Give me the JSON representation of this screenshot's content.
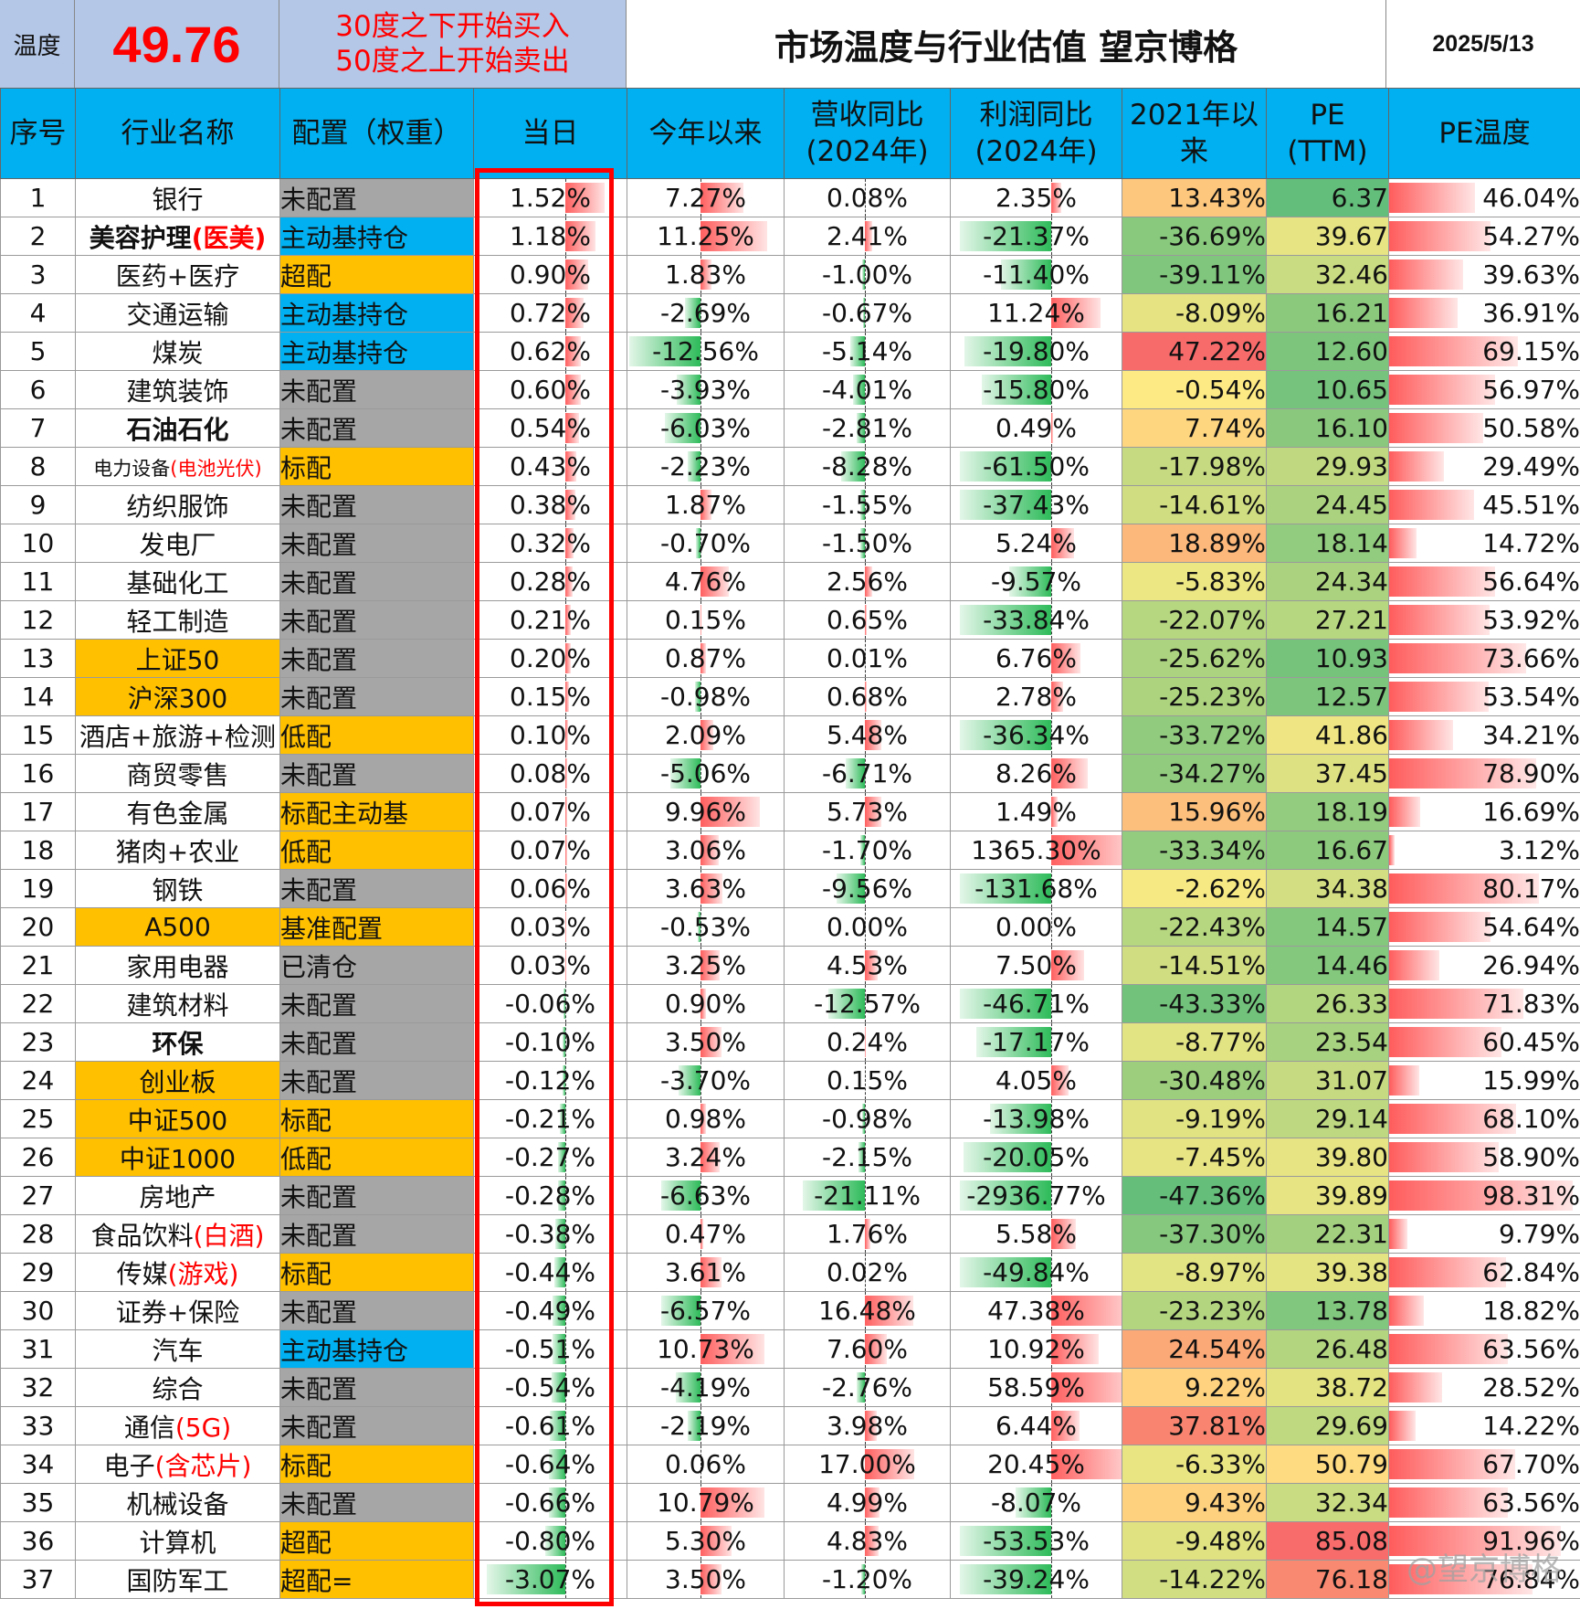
{
  "header": {
    "temp_label": "温度",
    "temp_value": "49.76",
    "rule_line1": "30度之下开始买入",
    "rule_line2": "50度之上开始卖出",
    "title": "市场温度与行业估值 望京博格",
    "date": "2025/5/13"
  },
  "columns": [
    {
      "label": "序号"
    },
    {
      "label": "行业名称"
    },
    {
      "label": "配置（权重）"
    },
    {
      "label": "当日"
    },
    {
      "label": "今年以来"
    },
    {
      "label": "营收同比",
      "sub": "(2024年)"
    },
    {
      "label": "利润同比",
      "sub": "(2024年)"
    },
    {
      "label": "2021年以",
      "sub": "来"
    },
    {
      "label": "PE",
      "sub": "(TTM)"
    },
    {
      "label": "PE温度"
    }
  ],
  "colors": {
    "header_bg": "#00b0f0",
    "banner_bg": "#b4c7e7",
    "alloc_gray": "#a6a6a6",
    "alloc_blue": "#00b0f0",
    "gold": "#ffc000",
    "heat_low": "#63be7b",
    "heat_mid": "#ffeb84",
    "heat_high": "#f8696b"
  },
  "rows": [
    {
      "idx": "1",
      "name": "银行",
      "alloc": "未配置",
      "alloc_type": "gray",
      "daily": "1.52%",
      "ytd": "7.27%",
      "rev": "0.08%",
      "profit": "2.35%",
      "since2021": "13.43%",
      "pe": "6.37",
      "pe_temp": "46.04%"
    },
    {
      "idx": "2",
      "name": "美容护理",
      "name_note": "(医美)",
      "name_bold": true,
      "alloc": "主动基持仓",
      "alloc_type": "blue",
      "daily": "1.18%",
      "ytd": "11.25%",
      "rev": "2.41%",
      "profit": "-21.37%",
      "since2021": "-36.69%",
      "pe": "39.67",
      "pe_temp": "54.27%"
    },
    {
      "idx": "3",
      "name": "医药+医疗",
      "alloc": "超配",
      "alloc_type": "gold",
      "daily": "0.90%",
      "ytd": "1.83%",
      "rev": "-1.00%",
      "profit": "-11.40%",
      "since2021": "-39.11%",
      "pe": "32.46",
      "pe_temp": "39.63%"
    },
    {
      "idx": "4",
      "name": "交通运输",
      "alloc": "主动基持仓",
      "alloc_type": "blue",
      "daily": "0.72%",
      "ytd": "-2.69%",
      "rev": "-0.67%",
      "profit": "11.24%",
      "since2021": "-8.09%",
      "pe": "16.21",
      "pe_temp": "36.91%"
    },
    {
      "idx": "5",
      "name": "煤炭",
      "alloc": "主动基持仓",
      "alloc_type": "blue",
      "daily": "0.62%",
      "ytd": "-12.56%",
      "rev": "-5.14%",
      "profit": "-19.80%",
      "since2021": "47.22%",
      "pe": "12.60",
      "pe_temp": "69.15%"
    },
    {
      "idx": "6",
      "name": "建筑装饰",
      "alloc": "未配置",
      "alloc_type": "gray",
      "daily": "0.60%",
      "ytd": "-3.93%",
      "rev": "-4.01%",
      "profit": "-15.80%",
      "since2021": "-0.54%",
      "pe": "10.65",
      "pe_temp": "56.97%"
    },
    {
      "idx": "7",
      "name": "石油石化",
      "name_bold": true,
      "alloc": "未配置",
      "alloc_type": "gray",
      "daily": "0.54%",
      "ytd": "-6.03%",
      "rev": "-2.81%",
      "profit": "0.49%",
      "since2021": "7.74%",
      "pe": "16.10",
      "pe_temp": "50.58%"
    },
    {
      "idx": "8",
      "name": "电力设备",
      "name_note": "(电池光伏)",
      "name_small": true,
      "alloc": "标配",
      "alloc_type": "gold",
      "daily": "0.43%",
      "ytd": "-2.23%",
      "rev": "-8.28%",
      "profit": "-61.50%",
      "since2021": "-17.98%",
      "pe": "29.93",
      "pe_temp": "29.49%"
    },
    {
      "idx": "9",
      "name": "纺织服饰",
      "alloc": "未配置",
      "alloc_type": "gray",
      "daily": "0.38%",
      "ytd": "1.87%",
      "rev": "-1.55%",
      "profit": "-37.43%",
      "since2021": "-14.61%",
      "pe": "24.45",
      "pe_temp": "45.51%"
    },
    {
      "idx": "10",
      "name": "发电厂",
      "alloc": "未配置",
      "alloc_type": "gray",
      "daily": "0.32%",
      "ytd": "-0.70%",
      "rev": "-1.50%",
      "profit": "5.24%",
      "since2021": "18.89%",
      "pe": "18.14",
      "pe_temp": "14.72%"
    },
    {
      "idx": "11",
      "name": "基础化工",
      "alloc": "未配置",
      "alloc_type": "gray",
      "daily": "0.28%",
      "ytd": "4.76%",
      "rev": "2.56%",
      "profit": "-9.57%",
      "since2021": "-5.83%",
      "pe": "24.34",
      "pe_temp": "56.64%"
    },
    {
      "idx": "12",
      "name": "轻工制造",
      "alloc": "未配置",
      "alloc_type": "gray",
      "daily": "0.21%",
      "ytd": "0.15%",
      "rev": "0.65%",
      "profit": "-33.84%",
      "since2021": "-22.07%",
      "pe": "27.21",
      "pe_temp": "53.92%"
    },
    {
      "idx": "13",
      "name": "上证50",
      "name_gold": true,
      "alloc": "未配置",
      "alloc_type": "gray",
      "daily": "0.20%",
      "ytd": "0.87%",
      "rev": "0.01%",
      "profit": "6.76%",
      "since2021": "-25.62%",
      "pe": "10.93",
      "pe_temp": "73.66%"
    },
    {
      "idx": "14",
      "name": "沪深300",
      "name_gold": true,
      "alloc": "未配置",
      "alloc_type": "gray",
      "daily": "0.15%",
      "ytd": "-0.98%",
      "rev": "0.68%",
      "profit": "2.78%",
      "since2021": "-25.23%",
      "pe": "12.57",
      "pe_temp": "53.54%"
    },
    {
      "idx": "15",
      "name": "酒店+旅游+检测",
      "alloc": "低配",
      "alloc_type": "gold",
      "daily": "0.10%",
      "ytd": "2.09%",
      "rev": "5.48%",
      "profit": "-36.34%",
      "since2021": "-33.72%",
      "pe": "41.86",
      "pe_temp": "34.21%"
    },
    {
      "idx": "16",
      "name": "商贸零售",
      "alloc": "未配置",
      "alloc_type": "gray",
      "daily": "0.08%",
      "ytd": "-5.06%",
      "rev": "-6.71%",
      "profit": "8.26%",
      "since2021": "-34.27%",
      "pe": "37.45",
      "pe_temp": "78.90%"
    },
    {
      "idx": "17",
      "name": "有色金属",
      "alloc": "标配主动基",
      "alloc_type": "gold",
      "daily": "0.07%",
      "ytd": "9.96%",
      "rev": "5.73%",
      "profit": "1.49%",
      "since2021": "15.96%",
      "pe": "18.19",
      "pe_temp": "16.69%"
    },
    {
      "idx": "18",
      "name": "猪肉+农业",
      "alloc": "低配",
      "alloc_type": "gold",
      "daily": "0.07%",
      "ytd": "3.06%",
      "rev": "-1.70%",
      "profit": "1365.30%",
      "since2021": "-33.34%",
      "pe": "16.67",
      "pe_temp": "3.12%"
    },
    {
      "idx": "19",
      "name": "钢铁",
      "alloc": "未配置",
      "alloc_type": "gray",
      "daily": "0.06%",
      "ytd": "3.63%",
      "rev": "-9.56%",
      "profit": "-131.68%",
      "since2021": "-2.62%",
      "pe": "34.38",
      "pe_temp": "80.17%"
    },
    {
      "idx": "20",
      "name": "A500",
      "name_gold": true,
      "alloc": "基准配置",
      "alloc_type": "gold",
      "daily": "0.03%",
      "ytd": "-0.53%",
      "rev": "0.00%",
      "profit": "0.00%",
      "since2021": "-22.43%",
      "pe": "14.57",
      "pe_temp": "54.64%"
    },
    {
      "idx": "21",
      "name": "家用电器",
      "alloc": "已清仓",
      "alloc_type": "gray",
      "daily": "0.03%",
      "ytd": "3.25%",
      "rev": "4.53%",
      "profit": "7.50%",
      "since2021": "-14.51%",
      "pe": "14.46",
      "pe_temp": "26.94%"
    },
    {
      "idx": "22",
      "name": "建筑材料",
      "alloc": "未配置",
      "alloc_type": "gray",
      "daily": "-0.06%",
      "ytd": "0.90%",
      "rev": "-12.57%",
      "profit": "-46.71%",
      "since2021": "-43.33%",
      "pe": "26.33",
      "pe_temp": "71.83%"
    },
    {
      "idx": "23",
      "name": "环保",
      "name_bold": true,
      "alloc": "未配置",
      "alloc_type": "gray",
      "daily": "-0.10%",
      "ytd": "3.50%",
      "rev": "0.24%",
      "profit": "-17.17%",
      "since2021": "-8.77%",
      "pe": "23.54",
      "pe_temp": "60.45%"
    },
    {
      "idx": "24",
      "name": "创业板",
      "name_gold": true,
      "alloc": "未配置",
      "alloc_type": "gray",
      "daily": "-0.12%",
      "ytd": "-3.70%",
      "rev": "0.15%",
      "profit": "4.05%",
      "since2021": "-30.48%",
      "pe": "31.07",
      "pe_temp": "15.99%"
    },
    {
      "idx": "25",
      "name": "中证500",
      "name_gold": true,
      "alloc": "标配",
      "alloc_type": "gold",
      "daily": "-0.21%",
      "ytd": "0.98%",
      "rev": "-0.98%",
      "profit": "-13.98%",
      "since2021": "-9.19%",
      "pe": "29.14",
      "pe_temp": "68.10%"
    },
    {
      "idx": "26",
      "name": "中证1000",
      "name_gold": true,
      "alloc": "低配",
      "alloc_type": "gold",
      "daily": "-0.27%",
      "ytd": "3.24%",
      "rev": "-2.15%",
      "profit": "-20.05%",
      "since2021": "-7.45%",
      "pe": "39.80",
      "pe_temp": "58.90%"
    },
    {
      "idx": "27",
      "name": "房地产",
      "alloc": "未配置",
      "alloc_type": "gray",
      "daily": "-0.28%",
      "ytd": "-6.63%",
      "rev": "-21.11%",
      "profit": "-2936.77%",
      "since2021": "-47.36%",
      "pe": "39.89",
      "pe_temp": "98.31%"
    },
    {
      "idx": "28",
      "name": "食品饮料",
      "name_note": "(白酒)",
      "alloc": "未配置",
      "alloc_type": "gray",
      "daily": "-0.38%",
      "ytd": "0.47%",
      "rev": "1.76%",
      "profit": "5.58%",
      "since2021": "-37.30%",
      "pe": "22.31",
      "pe_temp": "9.79%"
    },
    {
      "idx": "29",
      "name": "传媒",
      "name_note": "(游戏)",
      "alloc": "标配",
      "alloc_type": "gold",
      "daily": "-0.44%",
      "ytd": "3.61%",
      "rev": "0.02%",
      "profit": "-49.84%",
      "since2021": "-8.97%",
      "pe": "39.38",
      "pe_temp": "62.84%"
    },
    {
      "idx": "30",
      "name": "证券+保险",
      "alloc": "未配置",
      "alloc_type": "gray",
      "daily": "-0.49%",
      "ytd": "-6.57%",
      "rev": "16.48%",
      "profit": "47.38%",
      "since2021": "-23.23%",
      "pe": "13.78",
      "pe_temp": "18.82%"
    },
    {
      "idx": "31",
      "name": "汽车",
      "alloc": "主动基持仓",
      "alloc_type": "blue",
      "daily": "-0.51%",
      "ytd": "10.73%",
      "rev": "7.60%",
      "profit": "10.92%",
      "since2021": "24.54%",
      "pe": "26.48",
      "pe_temp": "63.56%"
    },
    {
      "idx": "32",
      "name": "综合",
      "alloc": "未配置",
      "alloc_type": "gray",
      "daily": "-0.54%",
      "ytd": "-4.19%",
      "rev": "-2.76%",
      "profit": "58.59%",
      "since2021": "9.22%",
      "pe": "38.72",
      "pe_temp": "28.52%"
    },
    {
      "idx": "33",
      "name": "通信",
      "name_note": "(5G)",
      "alloc": "未配置",
      "alloc_type": "gray",
      "daily": "-0.61%",
      "ytd": "-2.19%",
      "rev": "3.98%",
      "profit": "6.44%",
      "since2021": "37.81%",
      "pe": "29.69",
      "pe_temp": "14.22%"
    },
    {
      "idx": "34",
      "name": "电子",
      "name_note": "(含芯片)",
      "alloc": "标配",
      "alloc_type": "gold",
      "daily": "-0.64%",
      "ytd": "0.06%",
      "rev": "17.00%",
      "profit": "20.45%",
      "since2021": "-6.33%",
      "pe": "50.79",
      "pe_temp": "67.70%"
    },
    {
      "idx": "35",
      "name": "机械设备",
      "alloc": "未配置",
      "alloc_type": "gray",
      "daily": "-0.66%",
      "ytd": "10.79%",
      "rev": "4.99%",
      "profit": "-8.07%",
      "since2021": "9.43%",
      "pe": "32.34",
      "pe_temp": "63.56%"
    },
    {
      "idx": "36",
      "name": "计算机",
      "alloc": "超配",
      "alloc_type": "gold",
      "daily": "-0.80%",
      "ytd": "5.30%",
      "rev": "4.83%",
      "profit": "-53.53%",
      "since2021": "-9.48%",
      "pe": "85.08",
      "pe_temp": "91.96%"
    },
    {
      "idx": "37",
      "name": "国防军工",
      "alloc": "超配=",
      "alloc_type": "gold",
      "daily": "-3.07%",
      "ytd": "3.50%",
      "rev": "-1.20%",
      "profit": "-39.24%",
      "since2021": "-14.22%",
      "pe": "76.18",
      "pe_temp": "76.84%"
    }
  ],
  "watermark": "@望京博格"
}
